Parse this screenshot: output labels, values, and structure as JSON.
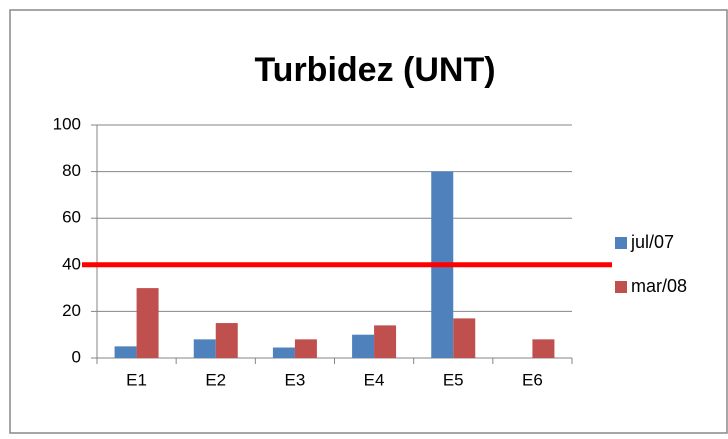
{
  "chart_data": {
    "type": "bar",
    "title": "Turbidez (UNT)",
    "categories": [
      "E1",
      "E2",
      "E3",
      "E4",
      "E5",
      "E6"
    ],
    "series": [
      {
        "name": "jul/07",
        "color": "#4f81bd",
        "values": [
          5,
          8,
          4.5,
          10,
          80,
          null
        ]
      },
      {
        "name": "mar/08",
        "color": "#c0504d",
        "values": [
          30,
          15,
          8,
          14,
          17,
          8
        ]
      }
    ],
    "ylim": [
      0,
      100
    ],
    "yticks": [
      0,
      20,
      40,
      60,
      80,
      100
    ],
    "grid": true,
    "legend": "right",
    "reference_line": {
      "value": 40,
      "color": "#ff0000"
    }
  }
}
